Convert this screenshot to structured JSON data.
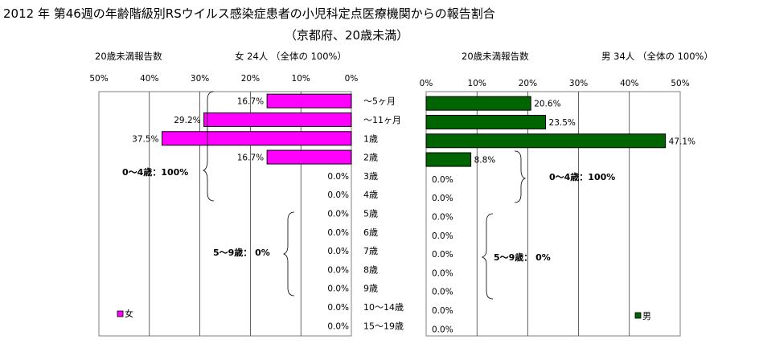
{
  "title": "2012 年 第46週の年齢階級別RSウイルス感染症患者の小児科定点医療機関からの報告割合",
  "subtitle": "（京都府、20歳未満）",
  "left_header": {
    "label": "20歳未満報告数",
    "summary": "女  24人 （全体の  100%）"
  },
  "right_header": {
    "label": "20歳未満報告数",
    "summary": "男  34人 （全体の  100%）"
  },
  "colors": {
    "female": "#ff00ff",
    "male": "#006400",
    "plot_bg": "#ffffff"
  },
  "chart_data": [
    {
      "type": "bar",
      "orientation": "horizontal",
      "direction": "right-to-left",
      "categories": [
        "～5ヶ月",
        "～11ヶ月",
        "1歳",
        "2歳",
        "3歳",
        "4歳",
        "5歳",
        "6歳",
        "7歳",
        "8歳",
        "9歳",
        "10～14歳",
        "15～19歳"
      ],
      "series": [
        {
          "name": "女",
          "values": [
            16.7,
            29.2,
            37.5,
            16.7,
            0.0,
            0.0,
            0.0,
            0.0,
            0.0,
            0.0,
            0.0,
            0.0,
            0.0
          ],
          "labels": [
            "16.7%",
            "29.2%",
            "37.5%",
            "16.7%",
            "0.0%",
            "0.0%",
            "0.0%",
            "0.0%",
            "0.0%",
            "0.0%",
            "0.0%",
            "0.0%",
            "0.0%"
          ]
        }
      ],
      "xlim": [
        0,
        50
      ],
      "ticks": [
        "50%",
        "40%",
        "30%",
        "20%",
        "10%",
        "0%"
      ],
      "grid": true,
      "legend": "bottom-left",
      "annotations": [
        "0～4歳：100%",
        "5～9歳：  0%"
      ]
    },
    {
      "type": "bar",
      "orientation": "horizontal",
      "direction": "left-to-right",
      "categories": [
        "～5ヶ月",
        "～11ヶ月",
        "1歳",
        "2歳",
        "3歳",
        "4歳",
        "5歳",
        "6歳",
        "7歳",
        "8歳",
        "9歳",
        "10～14歳",
        "15～19歳"
      ],
      "series": [
        {
          "name": "男",
          "values": [
            20.6,
            23.5,
            47.1,
            8.8,
            0.0,
            0.0,
            0.0,
            0.0,
            0.0,
            0.0,
            0.0,
            0.0,
            0.0
          ],
          "labels": [
            "20.6%",
            "23.5%",
            "47.1%",
            "8.8%",
            "0.0%",
            "0.0%",
            "0.0%",
            "0.0%",
            "0.0%",
            "0.0%",
            "0.0%",
            "0.0%",
            "0.0%"
          ]
        }
      ],
      "xlim": [
        0,
        50
      ],
      "ticks": [
        "0%",
        "10%",
        "20%",
        "30%",
        "40%",
        "50%"
      ],
      "grid": true,
      "legend": "bottom-right",
      "annotations": [
        "0～4歳：100%",
        "5～9歳：  0%"
      ]
    }
  ]
}
